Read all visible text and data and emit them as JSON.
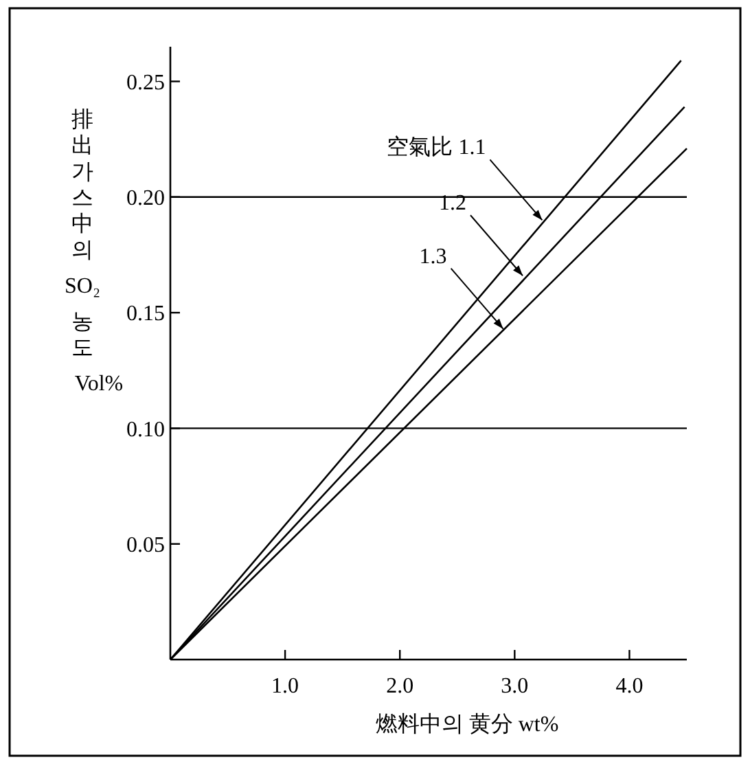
{
  "chart_data": {
    "type": "line",
    "xlabel": "燃料中의 黄分  wt%",
    "ylabel": "排出가스中의 SO₂ 농도 Vol%",
    "xlim": [
      0,
      4.5
    ],
    "ylim": [
      0,
      0.265
    ],
    "xticks": [
      {
        "value": 1,
        "label": "1.0"
      },
      {
        "value": 2,
        "label": "2.0"
      },
      {
        "value": 3,
        "label": "3.0"
      },
      {
        "value": 4,
        "label": "4.0"
      }
    ],
    "yticks": [
      {
        "value": 0.05,
        "label": "0.05"
      },
      {
        "value": 0.1,
        "label": "0.10"
      },
      {
        "value": 0.15,
        "label": "0.15"
      },
      {
        "value": 0.2,
        "label": "0.20"
      },
      {
        "value": 0.25,
        "label": "0.25"
      }
    ],
    "series": [
      {
        "color": "#000000",
        "x": [
          0,
          4.45
        ],
        "values": [
          0,
          0.259
        ]
      },
      {
        "color": "#000000",
        "x": [
          0,
          4.48
        ],
        "values": [
          0,
          0.239
        ]
      },
      {
        "color": "#000000",
        "x": [
          0,
          4.5
        ],
        "values": [
          0,
          0.221
        ]
      }
    ],
    "ref_lines": [
      {
        "axis": "y",
        "value": 0.1,
        "color": "#000000"
      },
      {
        "axis": "y",
        "value": 0.2,
        "color": "#000000"
      }
    ],
    "annotations": [
      {
        "text": "空氣比 1.1",
        "x": 3.24,
        "y": 0.19
      },
      {
        "text": "1.2",
        "x": 3.07,
        "y": 0.166
      },
      {
        "text": "1.3",
        "x": 2.9,
        "y": 0.143
      }
    ],
    "marker": "none",
    "line_style": "solid"
  }
}
